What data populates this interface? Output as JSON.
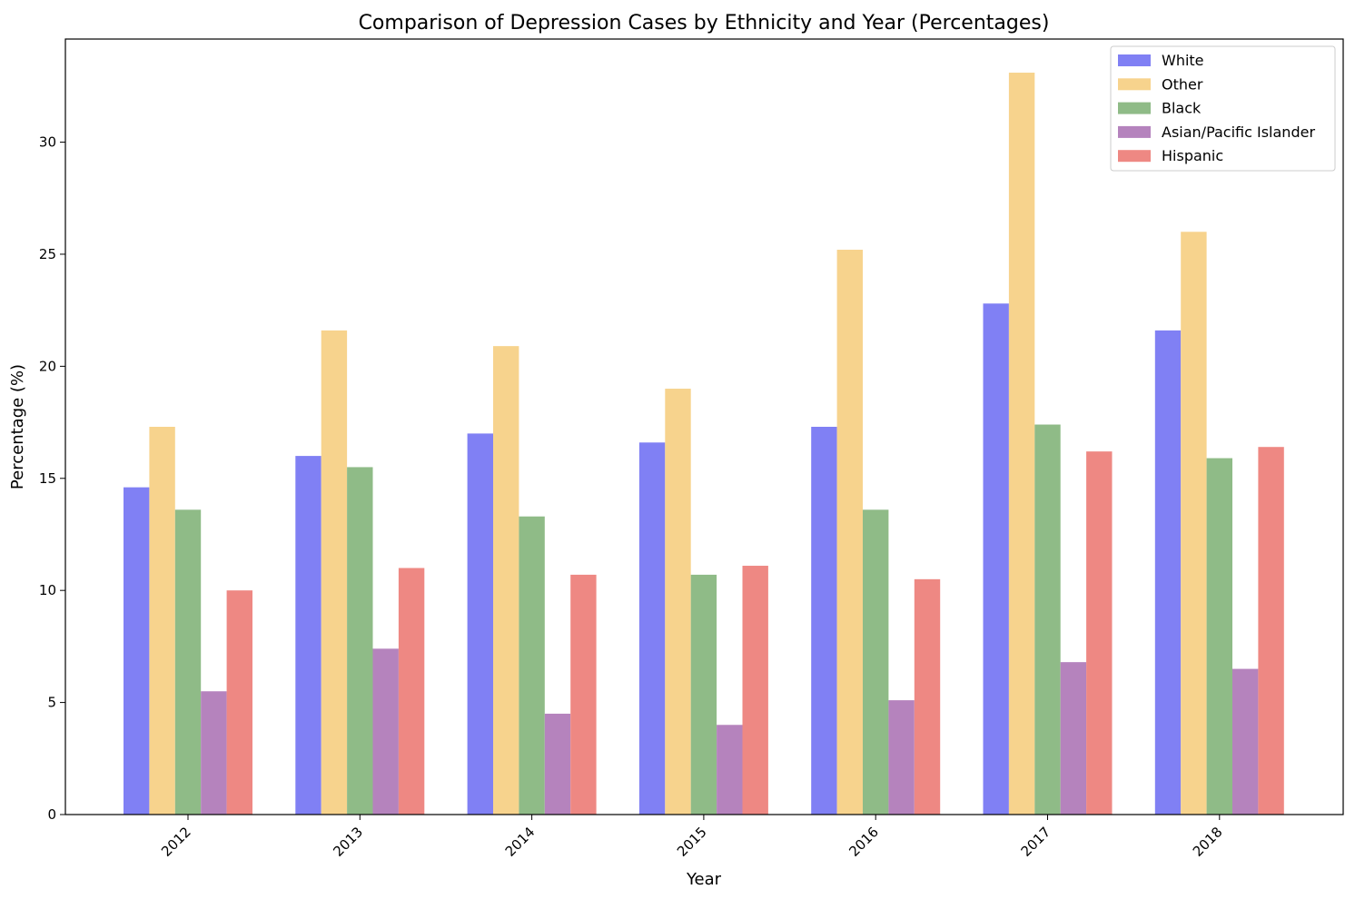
{
  "chart_data": {
    "type": "bar",
    "title": "Comparison of Depression Cases by Ethnicity and Year (Percentages)",
    "xlabel": "Year",
    "ylabel": "Percentage (%)",
    "categories": [
      "2012",
      "2013",
      "2014",
      "2015",
      "2016",
      "2017",
      "2018"
    ],
    "ylim": [
      0,
      34.6
    ],
    "yticks": [
      0,
      5,
      10,
      15,
      20,
      25,
      30
    ],
    "grid": false,
    "legend_position": "top-right",
    "series": [
      {
        "name": "White",
        "color": "#8080f4",
        "values": [
          14.6,
          16.0,
          17.0,
          16.6,
          17.3,
          22.8,
          21.6
        ]
      },
      {
        "name": "Other",
        "color": "#f7d38d",
        "values": [
          17.3,
          21.6,
          20.9,
          19.0,
          25.2,
          33.1,
          26.0
        ]
      },
      {
        "name": "Black",
        "color": "#8fbb87",
        "values": [
          13.6,
          15.5,
          13.3,
          10.7,
          13.6,
          17.4,
          15.9
        ]
      },
      {
        "name": "Asian/Pacific Islander",
        "color": "#b583bd",
        "values": [
          5.5,
          7.4,
          4.5,
          4.0,
          5.1,
          6.8,
          6.5
        ]
      },
      {
        "name": "Hispanic",
        "color": "#ee8883",
        "values": [
          10.0,
          11.0,
          10.7,
          11.1,
          10.5,
          16.2,
          16.4
        ]
      }
    ]
  }
}
